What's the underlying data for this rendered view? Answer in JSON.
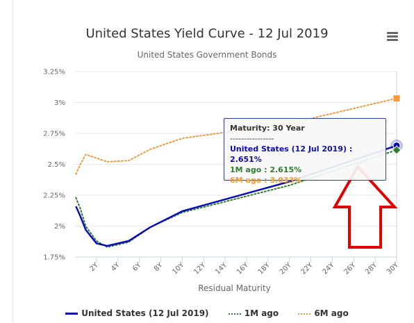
{
  "header": {
    "title": "United States Yield Curve - 12 Jul 2019",
    "subtitle": "United States Government Bonds"
  },
  "chart_data": {
    "type": "line",
    "title": "United States Yield Curve - 12 Jul 2019",
    "subtitle": "United States Government Bonds",
    "xlabel": "Residual Maturity",
    "ylabel": "",
    "xlim": [
      0,
      30
    ],
    "ylim": [
      1.75,
      3.25
    ],
    "x_ticks": [
      "2Y",
      "4Y",
      "6Y",
      "8Y",
      "10Y",
      "12Y",
      "14Y",
      "16Y",
      "18Y",
      "20Y",
      "22Y",
      "24Y",
      "26Y",
      "28Y",
      "30Y"
    ],
    "x_tick_values": [
      2,
      4,
      6,
      8,
      10,
      12,
      14,
      16,
      18,
      20,
      22,
      24,
      26,
      28,
      30
    ],
    "y_ticks": [
      "1.75%",
      "2%",
      "2.25%",
      "2.5%",
      "2.75%",
      "3%",
      "3.25%"
    ],
    "y_tick_values": [
      1.75,
      2,
      2.25,
      2.5,
      2.75,
      3,
      3.25
    ],
    "grid": "horizontal",
    "legend_position": "bottom",
    "series": [
      {
        "name": "United States (12 Jul 2019)",
        "color": "#0b0bb5",
        "style": "solid",
        "x": [
          0.083,
          0.5,
          1,
          2,
          3,
          5,
          7,
          10,
          20,
          30
        ],
        "y": [
          2.16,
          2.08,
          1.97,
          1.86,
          1.84,
          1.88,
          1.99,
          2.12,
          2.36,
          2.651
        ]
      },
      {
        "name": "1M ago",
        "color": "#2e7d2e",
        "style": "dotted",
        "x": [
          0.083,
          0.5,
          1,
          2,
          3,
          5,
          7,
          10,
          20,
          30
        ],
        "y": [
          2.23,
          2.14,
          2.0,
          1.88,
          1.83,
          1.87,
          1.99,
          2.11,
          2.33,
          2.615
        ]
      },
      {
        "name": "6M ago",
        "color": "#f39a3c",
        "style": "dotted",
        "x": [
          0.083,
          0.5,
          1,
          2,
          3,
          5,
          7,
          10,
          20,
          30
        ],
        "y": [
          2.42,
          2.5,
          2.58,
          2.55,
          2.52,
          2.53,
          2.62,
          2.71,
          2.83,
          3.033
        ]
      }
    ]
  },
  "tooltip": {
    "heading": "Maturity: 30 Year",
    "separator": "----------------",
    "us_line": "United States (12 Jul 2019) : 2.651%",
    "m1_line": "1M ago : 2.615%",
    "m6_line": "6M ago : 3.033%"
  },
  "legend": {
    "items": [
      "United States (12 Jul 2019)",
      "1M ago",
      "6M ago"
    ]
  },
  "annotation": {
    "arrow_color": "#e00000"
  },
  "icons": {
    "menu": "hamburger-menu-icon"
  }
}
